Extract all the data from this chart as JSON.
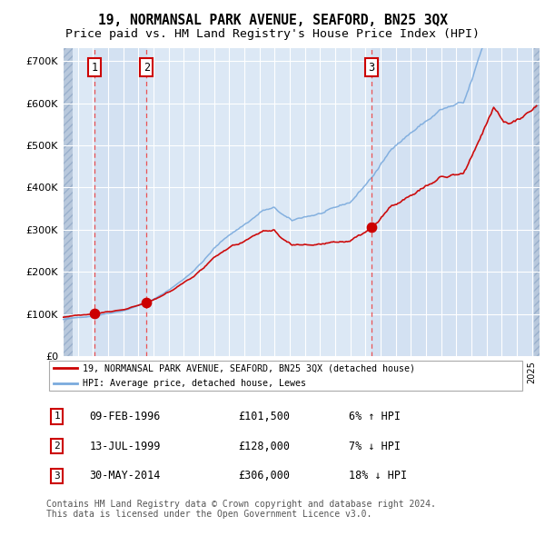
{
  "title": "19, NORMANSAL PARK AVENUE, SEAFORD, BN25 3QX",
  "subtitle": "Price paid vs. HM Land Registry's House Price Index (HPI)",
  "legend_label_red": "19, NORMANSAL PARK AVENUE, SEAFORD, BN25 3QX (detached house)",
  "legend_label_blue": "HPI: Average price, detached house, Lewes",
  "transactions": [
    {
      "num": 1,
      "date": "09-FEB-1996",
      "price": 101500,
      "hpi_relation": "6% ↑ HPI"
    },
    {
      "num": 2,
      "date": "13-JUL-1999",
      "price": 128000,
      "hpi_relation": "7% ↓ HPI"
    },
    {
      "num": 3,
      "date": "30-MAY-2014",
      "price": 306000,
      "hpi_relation": "18% ↓ HPI"
    }
  ],
  "transaction_years": [
    1996.1,
    1999.54,
    2014.41
  ],
  "transaction_prices": [
    101500,
    128000,
    306000
  ],
  "ylabel_ticks": [
    "£0",
    "£100K",
    "£200K",
    "£300K",
    "£400K",
    "£500K",
    "£600K",
    "£700K"
  ],
  "ylabel_values": [
    0,
    100000,
    200000,
    300000,
    400000,
    500000,
    600000,
    700000
  ],
  "ylim": [
    0,
    730000
  ],
  "xlim_start": 1994.0,
  "xlim_end": 2025.5,
  "bg_color": "#dce8f5",
  "hatch_color": "#b8c8dc",
  "grid_color": "#ffffff",
  "red_line_color": "#cc0000",
  "blue_line_color": "#7aaadd",
  "dashed_line_color": "#ee4444",
  "note_text": "Contains HM Land Registry data © Crown copyright and database right 2024.\nThis data is licensed under the Open Government Licence v3.0.",
  "footnote_fontsize": 7.0,
  "title_fontsize": 10.5,
  "subtitle_fontsize": 9.5
}
